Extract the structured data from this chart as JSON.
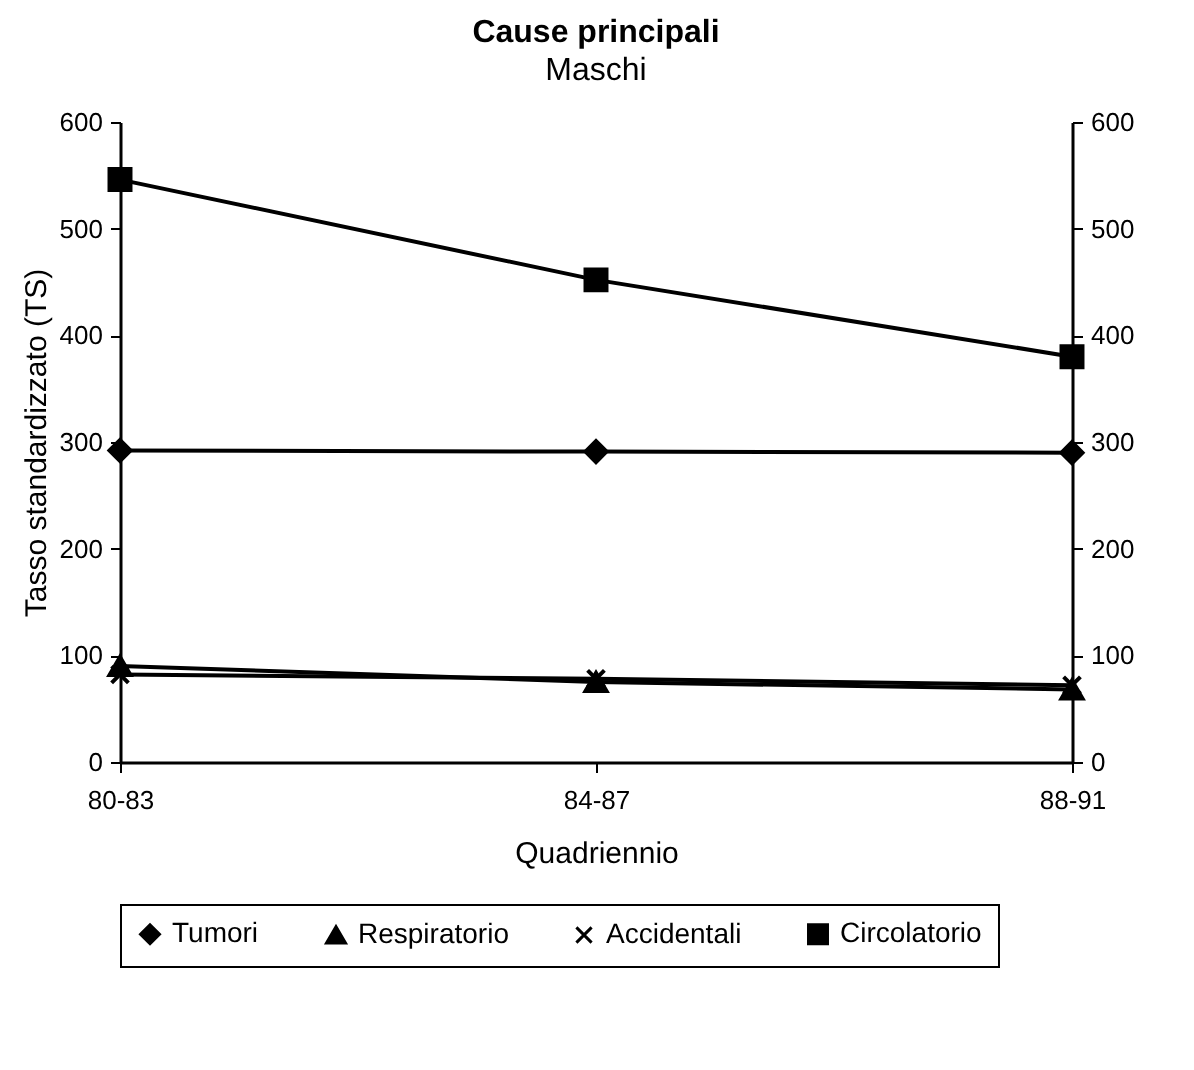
{
  "chart_data": {
    "type": "line",
    "title": "Cause principali",
    "subtitle": "Maschi",
    "xlabel": "Quadriennio",
    "ylabel": "Tasso standardizzato (TS)",
    "categories": [
      "80-83",
      "84-87",
      "88-91"
    ],
    "series": [
      {
        "name": "Tumori",
        "color": "#000000",
        "marker": "diamond",
        "values": [
          292,
          291,
          290
        ]
      },
      {
        "name": "Respiratorio",
        "color": "#000000",
        "marker": "triangle",
        "values": [
          90,
          75,
          68
        ]
      },
      {
        "name": "Accidentali",
        "color": "#000000",
        "marker": "cross",
        "values": [
          82,
          78,
          72
        ]
      },
      {
        "name": "Circolatorio",
        "color": "#000000",
        "marker": "square",
        "values": [
          546,
          452,
          380
        ]
      }
    ],
    "ylim": [
      0,
      600
    ],
    "yticks": [
      0,
      100,
      200,
      300,
      400,
      500,
      600
    ],
    "y2lim": [
      0,
      600
    ],
    "y2ticks": [
      0,
      100,
      200,
      300,
      400,
      500,
      600
    ],
    "grid": false,
    "legend": "bottom",
    "line_style": "solid"
  }
}
